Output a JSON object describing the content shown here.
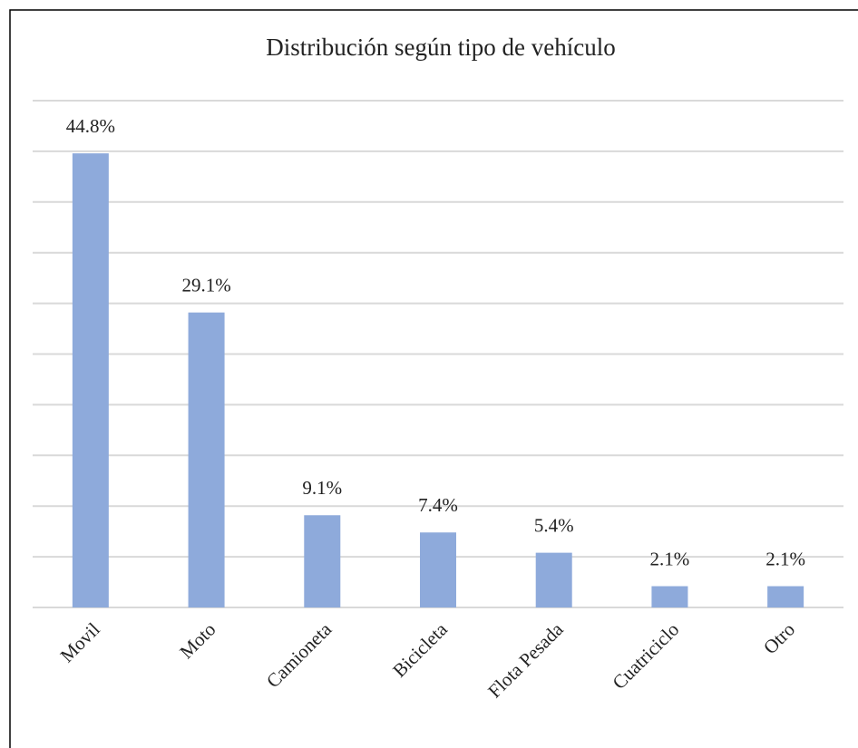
{
  "chart_data": {
    "type": "bar",
    "title": "Distribución según tipo de vehículo",
    "categories": [
      "Movil",
      "Moto",
      "Camioneta",
      "Bicicleta",
      "Flota Pesada",
      "Cuatriciclo",
      "Otro"
    ],
    "values": [
      44.8,
      29.1,
      9.1,
      7.4,
      5.4,
      2.1,
      2.1
    ],
    "value_labels": [
      "44.8%",
      "29.1%",
      "9.1%",
      "7.4%",
      "5.4%",
      "2.1%",
      "2.1%"
    ],
    "color": "#8eaadb",
    "ylim": [
      0,
      50
    ],
    "yticks": [
      0,
      5,
      10,
      15,
      20,
      25,
      30,
      35,
      40,
      45,
      50
    ],
    "grid": true
  }
}
